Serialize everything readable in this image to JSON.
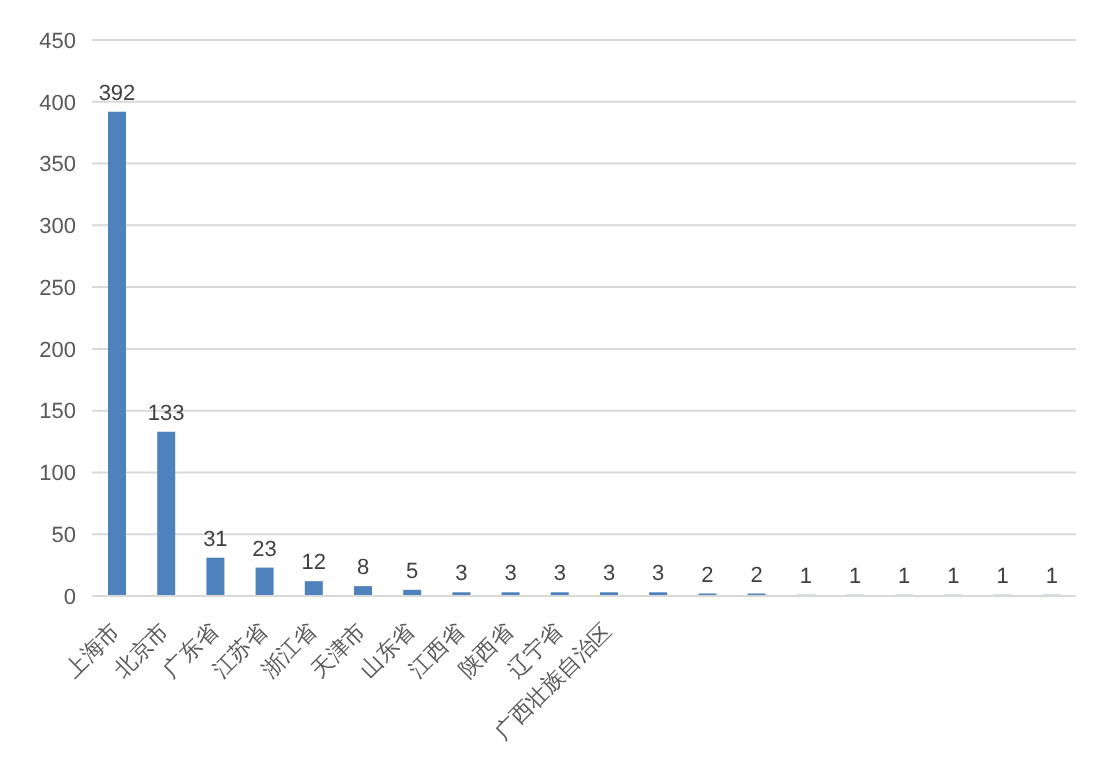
{
  "chart_data": {
    "type": "bar",
    "categories": [
      "上海市",
      "北京市",
      "广东省",
      "江苏省",
      "浙江省",
      "天津市",
      "山东省",
      "江西省",
      "陕西省",
      "辽宁省",
      "广西壮族自治区",
      null,
      null,
      null,
      null,
      null,
      null,
      null,
      null,
      null
    ],
    "values": [
      392,
      133,
      31,
      23,
      12,
      8,
      5,
      3,
      3,
      3,
      3,
      3,
      2,
      2,
      1,
      1,
      1,
      1,
      1,
      1
    ],
    "color": "#4f81bd",
    "ylim": [
      0,
      450
    ],
    "yticks": [
      0,
      50,
      100,
      150,
      200,
      250,
      300,
      350,
      400,
      450
    ],
    "grid": "y",
    "data_labels": true
  }
}
